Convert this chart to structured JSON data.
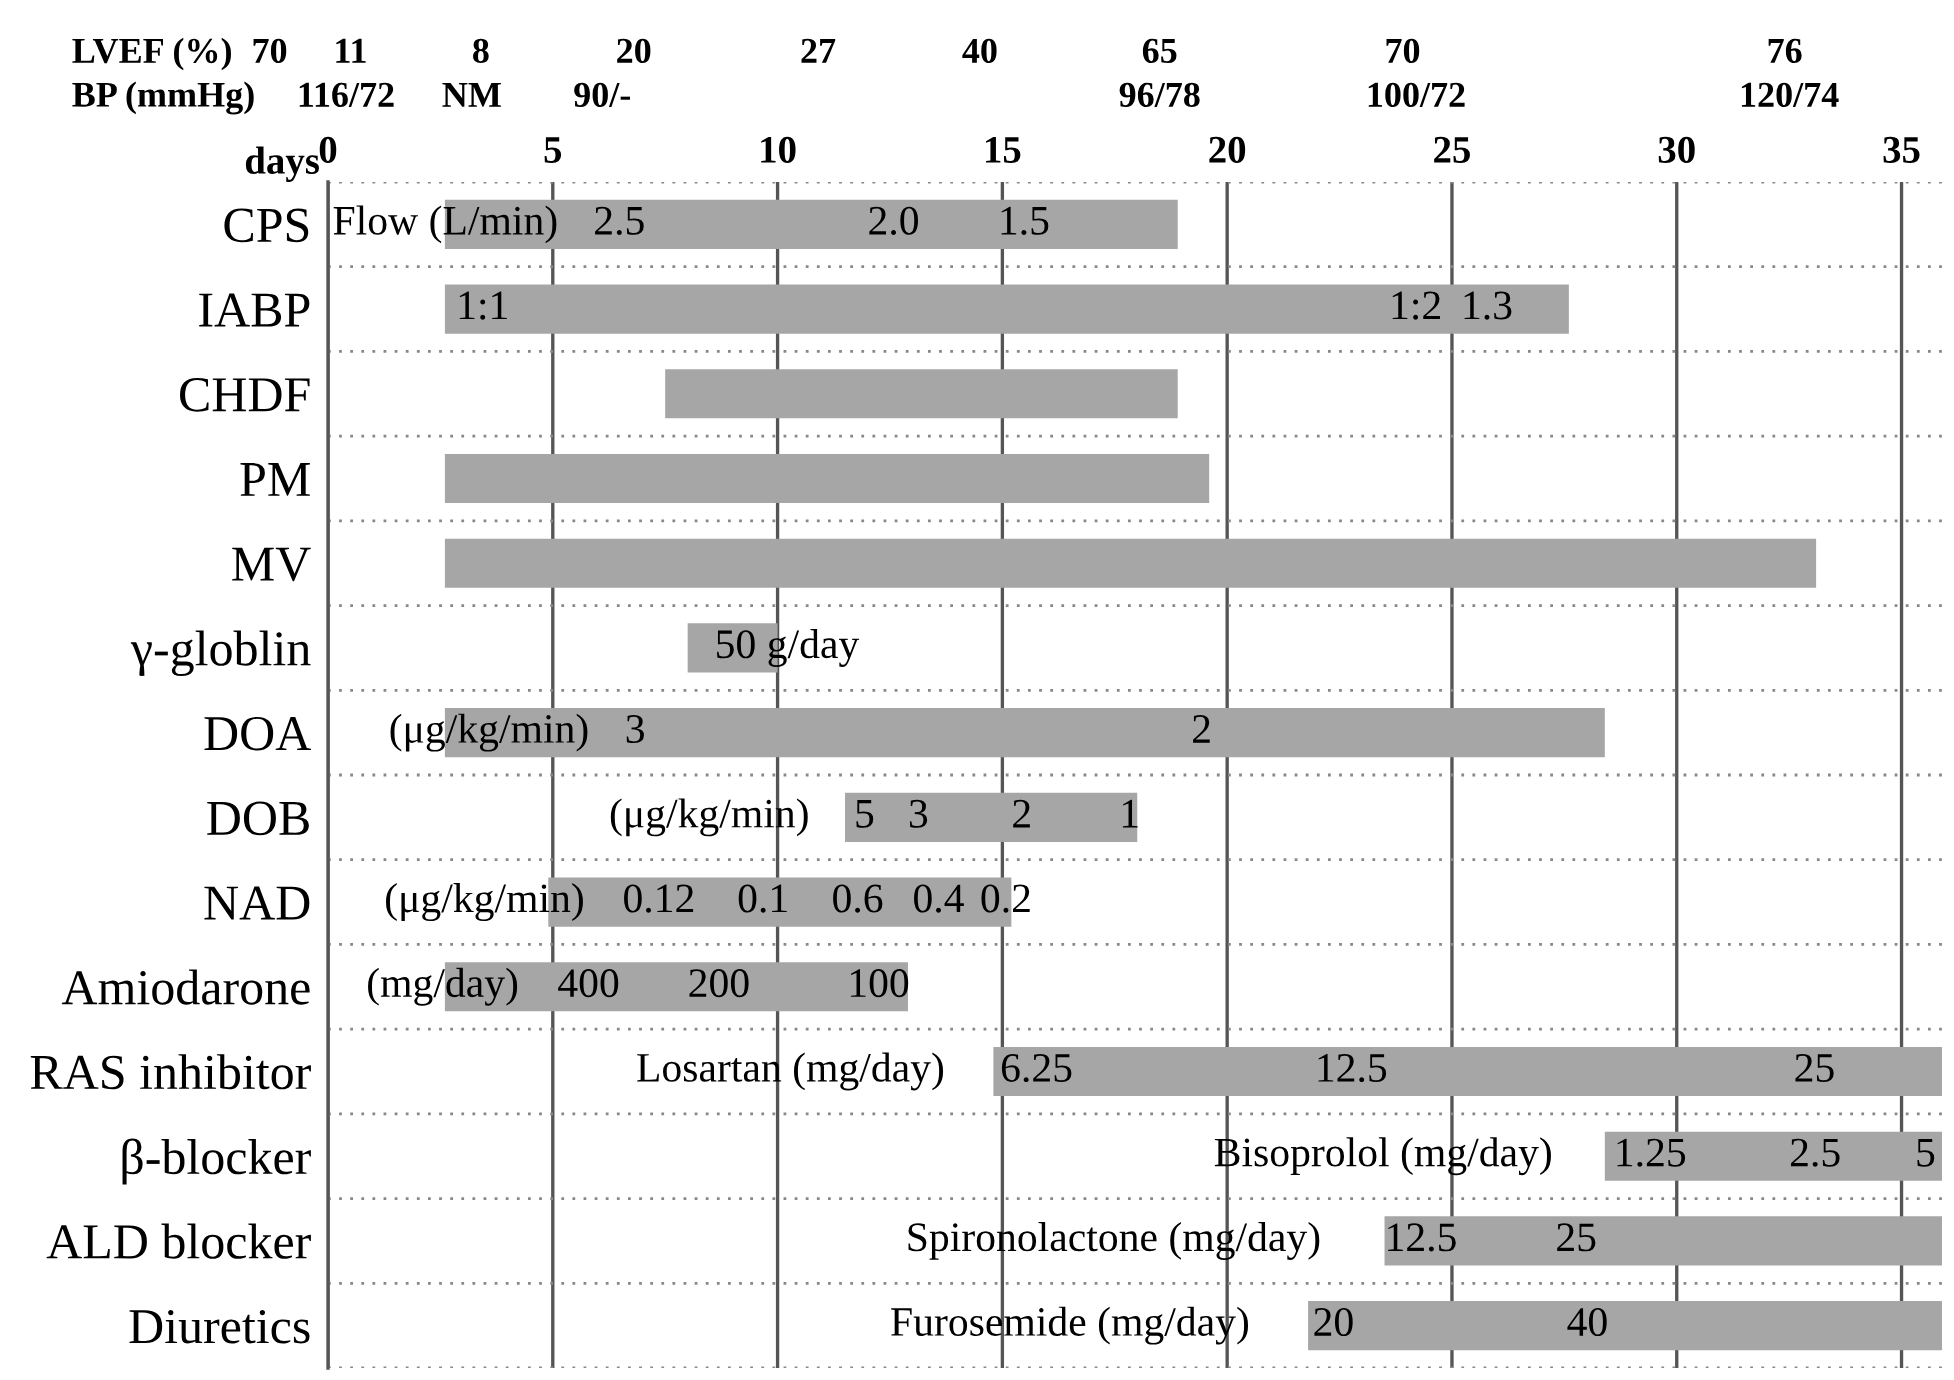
{
  "chart_data": {
    "type": "bar",
    "orientation": "horizontal",
    "categories": [
      "CPS",
      "IABP",
      "CHDF",
      "PM",
      "MV",
      "γ-globlin",
      "DOA",
      "DOB",
      "NAD",
      "Amiodarone",
      "RAS inhibitor",
      "β-blocker",
      "ALD blocker",
      "Diuretics"
    ],
    "base": [
      2.6,
      2.6,
      7.5,
      2.6,
      2.6,
      8.0,
      2.6,
      11.5,
      4.9,
      2.6,
      14.8,
      28.4,
      23.5,
      21.8
    ],
    "values": [
      16.3,
      25.0,
      11.4,
      17.0,
      30.5,
      2.0,
      25.8,
      6.5,
      10.3,
      10.3,
      21.1,
      7.5,
      12.4,
      14.1
    ],
    "color": "#a6a6a6",
    "xlabel": "days",
    "xlim": [
      0,
      35.9
    ],
    "xticks": [
      0,
      5,
      10,
      15,
      20,
      25,
      30,
      35
    ],
    "grid": "x",
    "annotations": [
      "LVEF (%)",
      "70",
      "11",
      "8",
      "20",
      "27",
      "40",
      "65",
      "70",
      "76",
      "BP (mmHg)",
      "116/72",
      "NM",
      "90/-",
      "96/78",
      "100/72",
      "120/74",
      "Flow (L/min)",
      "2.5",
      "2.0",
      "1.5",
      "1:1",
      "1:2",
      "1.3",
      "50 g/day",
      "(μg/kg/min)",
      "3",
      "2",
      "(μg/kg/min)",
      "5",
      "3",
      "2",
      "1",
      "(μg/kg/min)",
      "0.12",
      "0.1",
      "0.6",
      "0.4",
      "0.2",
      "(mg/day)",
      "400",
      "200",
      "100",
      "Losartan (mg/day)",
      "6.25",
      "12.5",
      "25",
      "Bisoprolol (mg/day)",
      "1.25",
      "2.5",
      "5",
      "Spironolactone (mg/day)",
      "12.5",
      "25",
      "Furosemide (mg/day)",
      "20",
      "40"
    ]
  }
}
